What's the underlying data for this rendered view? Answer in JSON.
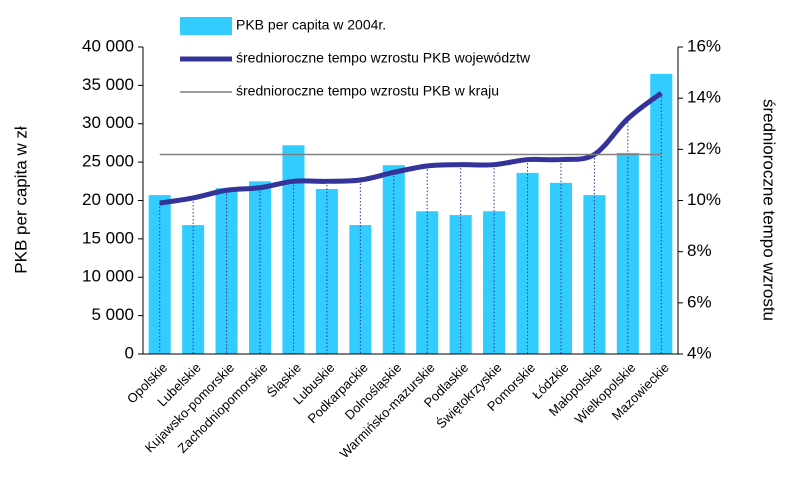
{
  "chart_data": {
    "type": "bar",
    "y_label": "PKB per capita w zł",
    "y2_label": "średnioroczne tempo wzrostu",
    "categories": [
      "Opolskie",
      "Lubelskie",
      "Kujawsko-pomorskie",
      "Zachodniopomorskie",
      "Śląskie",
      "Lubuskie",
      "Podkarpackie",
      "Dolnośląskie",
      "Warmińsko-mazurskie",
      "Podlaskie",
      "Świętokrzyskie",
      "Pomorskie",
      "Łódzkie",
      "Małopolskie",
      "Wielkopolskie",
      "Mazowieckie"
    ],
    "series": [
      {
        "name": "PKB per capita w 2004r.",
        "type": "bar",
        "color": "#33ccff",
        "values": [
          20700,
          16800,
          21600,
          22500,
          27200,
          21500,
          16800,
          24600,
          18600,
          18100,
          18600,
          23600,
          22300,
          20700,
          26200,
          36500
        ]
      },
      {
        "name": "średnioroczne tempo wzrostu PKB województw",
        "type": "line",
        "axis": "y2",
        "color": "#333399",
        "values": [
          9.9,
          10.1,
          10.4,
          10.5,
          10.75,
          10.75,
          10.8,
          11.1,
          11.35,
          11.4,
          11.4,
          11.6,
          11.6,
          11.8,
          13.2,
          14.2
        ]
      },
      {
        "name": "średnioroczne tempo wzrostu PKB w kraju",
        "type": "line",
        "axis": "y2",
        "color": "#808080",
        "values": [
          11.8,
          11.8,
          11.8,
          11.8,
          11.8,
          11.8,
          11.8,
          11.8,
          11.8,
          11.8,
          11.8,
          11.8,
          11.8,
          11.8,
          11.8,
          11.8
        ]
      }
    ],
    "ylim": [
      0,
      40000
    ],
    "yticks": [
      {
        "value": 0,
        "label": "0"
      },
      {
        "value": 5000,
        "label": "5 000"
      },
      {
        "value": 10000,
        "label": "10 000"
      },
      {
        "value": 15000,
        "label": "15 000"
      },
      {
        "value": 20000,
        "label": "20 000"
      },
      {
        "value": 25000,
        "label": "25 000"
      },
      {
        "value": 30000,
        "label": "30 000"
      },
      {
        "value": 35000,
        "label": "35 000"
      },
      {
        "value": 40000,
        "label": "40 000"
      }
    ],
    "y2lim": [
      4,
      16
    ],
    "y2ticks": [
      {
        "value": 4,
        "label": "4%"
      },
      {
        "value": 6,
        "label": "6%"
      },
      {
        "value": 8,
        "label": "8%"
      },
      {
        "value": 10,
        "label": "10%"
      },
      {
        "value": 12,
        "label": "12%"
      },
      {
        "value": 14,
        "label": "14%"
      },
      {
        "value": 16,
        "label": "16%"
      }
    ],
    "drop_lines": true
  }
}
